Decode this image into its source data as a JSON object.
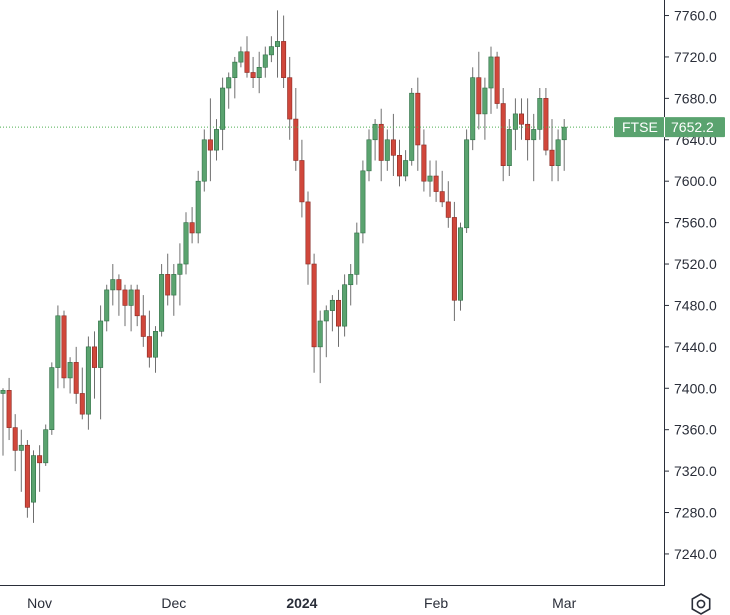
{
  "chart_data": {
    "type": "candlestick",
    "symbol": "FTSE",
    "last_price": "7652.2",
    "ylim": [
      7210,
      7775
    ],
    "y_ticks": [
      "7760.0",
      "7720.0",
      "7680.0",
      "7640.0",
      "7600.0",
      "7560.0",
      "7520.0",
      "7480.0",
      "7440.0",
      "7400.0",
      "7360.0",
      "7320.0",
      "7280.0",
      "7240.0"
    ],
    "x_ticks": [
      {
        "label": "Nov",
        "index": 6,
        "bold": false
      },
      {
        "label": "Dec",
        "index": 28,
        "bold": false
      },
      {
        "label": "2024",
        "index": 49,
        "bold": true
      },
      {
        "label": "Feb",
        "index": 71,
        "bold": false
      },
      {
        "label": "Mar",
        "index": 92,
        "bold": false
      }
    ],
    "up_color": "#5aa36f",
    "down_color": "#d0473b",
    "candles": [
      [
        7395,
        7400,
        7335,
        7398
      ],
      [
        7398,
        7410,
        7350,
        7362
      ],
      [
        7362,
        7375,
        7320,
        7340
      ],
      [
        7340,
        7360,
        7300,
        7345
      ],
      [
        7345,
        7350,
        7275,
        7285
      ],
      [
        7290,
        7340,
        7270,
        7335
      ],
      [
        7335,
        7345,
        7300,
        7328
      ],
      [
        7328,
        7365,
        7325,
        7360
      ],
      [
        7360,
        7425,
        7355,
        7420
      ],
      [
        7420,
        7480,
        7400,
        7470
      ],
      [
        7470,
        7475,
        7400,
        7410
      ],
      [
        7410,
        7430,
        7395,
        7425
      ],
      [
        7425,
        7440,
        7385,
        7395
      ],
      [
        7395,
        7420,
        7370,
        7375
      ],
      [
        7375,
        7450,
        7360,
        7440
      ],
      [
        7440,
        7455,
        7390,
        7420
      ],
      [
        7420,
        7480,
        7370,
        7465
      ],
      [
        7465,
        7500,
        7455,
        7495
      ],
      [
        7495,
        7520,
        7480,
        7505
      ],
      [
        7505,
        7510,
        7470,
        7495
      ],
      [
        7495,
        7500,
        7460,
        7480
      ],
      [
        7480,
        7500,
        7455,
        7495
      ],
      [
        7495,
        7500,
        7460,
        7470
      ],
      [
        7470,
        7490,
        7440,
        7450
      ],
      [
        7450,
        7475,
        7420,
        7430
      ],
      [
        7430,
        7460,
        7415,
        7455
      ],
      [
        7455,
        7520,
        7450,
        7510
      ],
      [
        7510,
        7530,
        7480,
        7490
      ],
      [
        7490,
        7520,
        7470,
        7510
      ],
      [
        7510,
        7540,
        7480,
        7520
      ],
      [
        7520,
        7570,
        7510,
        7560
      ],
      [
        7560,
        7575,
        7540,
        7550
      ],
      [
        7550,
        7610,
        7540,
        7600
      ],
      [
        7600,
        7650,
        7590,
        7640
      ],
      [
        7640,
        7680,
        7600,
        7630
      ],
      [
        7630,
        7660,
        7620,
        7650
      ],
      [
        7650,
        7700,
        7630,
        7690
      ],
      [
        7690,
        7705,
        7670,
        7700
      ],
      [
        7700,
        7720,
        7680,
        7715
      ],
      [
        7715,
        7730,
        7710,
        7725
      ],
      [
        7725,
        7740,
        7700,
        7705
      ],
      [
        7705,
        7720,
        7690,
        7700
      ],
      [
        7700,
        7725,
        7685,
        7710
      ],
      [
        7710,
        7730,
        7700,
        7722
      ],
      [
        7722,
        7740,
        7715,
        7730
      ],
      [
        7730,
        7765,
        7700,
        7735
      ],
      [
        7735,
        7760,
        7690,
        7700
      ],
      [
        7700,
        7720,
        7640,
        7660
      ],
      [
        7660,
        7690,
        7610,
        7620
      ],
      [
        7620,
        7640,
        7565,
        7580
      ],
      [
        7580,
        7590,
        7500,
        7520
      ],
      [
        7520,
        7530,
        7415,
        7440
      ],
      [
        7440,
        7475,
        7405,
        7465
      ],
      [
        7465,
        7480,
        7430,
        7475
      ],
      [
        7475,
        7490,
        7455,
        7485
      ],
      [
        7485,
        7495,
        7440,
        7460
      ],
      [
        7460,
        7510,
        7450,
        7500
      ],
      [
        7500,
        7520,
        7480,
        7510
      ],
      [
        7510,
        7560,
        7500,
        7550
      ],
      [
        7550,
        7620,
        7540,
        7610
      ],
      [
        7610,
        7650,
        7600,
        7640
      ],
      [
        7640,
        7660,
        7620,
        7655
      ],
      [
        7655,
        7670,
        7600,
        7620
      ],
      [
        7620,
        7650,
        7610,
        7640
      ],
      [
        7640,
        7665,
        7605,
        7625
      ],
      [
        7625,
        7640,
        7595,
        7605
      ],
      [
        7605,
        7630,
        7600,
        7620
      ],
      [
        7620,
        7690,
        7615,
        7685
      ],
      [
        7685,
        7700,
        7610,
        7635
      ],
      [
        7635,
        7650,
        7590,
        7600
      ],
      [
        7600,
        7620,
        7585,
        7605
      ],
      [
        7605,
        7620,
        7580,
        7590
      ],
      [
        7590,
        7610,
        7575,
        7580
      ],
      [
        7580,
        7600,
        7555,
        7565
      ],
      [
        7565,
        7580,
        7465,
        7485
      ],
      [
        7485,
        7560,
        7475,
        7555
      ],
      [
        7555,
        7650,
        7550,
        7640
      ],
      [
        7640,
        7710,
        7630,
        7700
      ],
      [
        7700,
        7725,
        7650,
        7665
      ],
      [
        7665,
        7700,
        7640,
        7690
      ],
      [
        7690,
        7730,
        7665,
        7720
      ],
      [
        7720,
        7725,
        7670,
        7675
      ],
      [
        7675,
        7690,
        7600,
        7615
      ],
      [
        7615,
        7660,
        7605,
        7650
      ],
      [
        7650,
        7680,
        7630,
        7665
      ],
      [
        7665,
        7680,
        7640,
        7655
      ],
      [
        7655,
        7680,
        7620,
        7640
      ],
      [
        7640,
        7665,
        7600,
        7650
      ],
      [
        7650,
        7690,
        7640,
        7680
      ],
      [
        7680,
        7690,
        7625,
        7630
      ],
      [
        7630,
        7660,
        7600,
        7615
      ],
      [
        7615,
        7650,
        7600,
        7640
      ],
      [
        7640,
        7660,
        7610,
        7652.2
      ]
    ]
  },
  "icons": {
    "settings": "gear-icon"
  }
}
